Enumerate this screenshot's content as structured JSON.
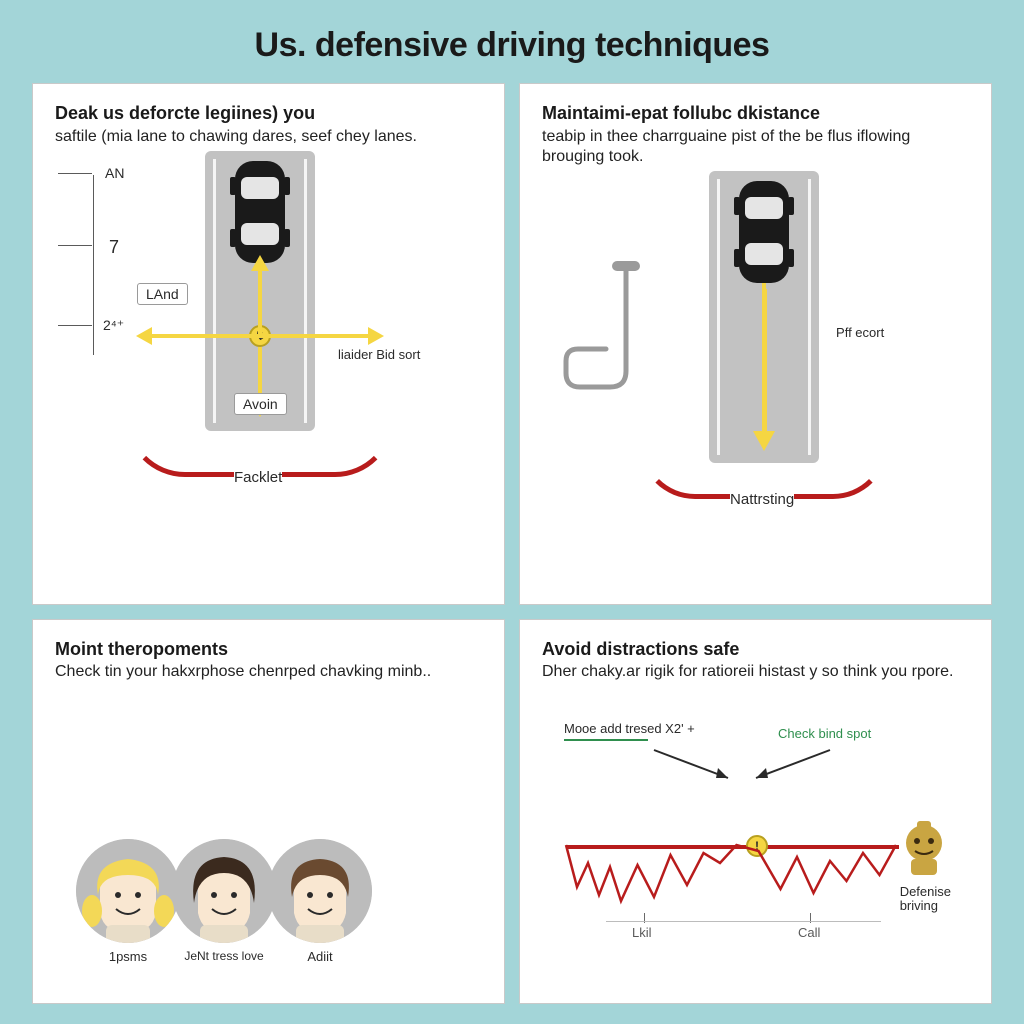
{
  "page": {
    "title": "Us. defensive driving techniques",
    "background_color": "#a3d5d8",
    "panel_bg": "#ffffff",
    "panel_border": "#c9c9c9"
  },
  "colors": {
    "text": "#1a1a1a",
    "road": "#c2c2c2",
    "lane_yellow": "#f5d642",
    "lane_white": "#f5f5f5",
    "arc_red": "#b81c1c",
    "node_yellow": "#f5d642",
    "green": "#2f8f4e",
    "gold": "#c9a542",
    "face_bg": "#bcbcbc"
  },
  "panels": {
    "p1": {
      "heading": "Deak us deforcte legiines) you",
      "sub": "saftile (mia lane to chawing dares, seef chey lanes.",
      "ticks": {
        "top": "AN",
        "mid": "7",
        "bot": "2⁴⁺",
        "and_label": "LAnd"
      },
      "labels": {
        "right_side": "liaider Bid sort",
        "box": "Avoin",
        "bottom": "Facklet"
      },
      "arc_color": "#b81c1c"
    },
    "p2": {
      "heading": "Maintaimi-epat follubc dkistance",
      "sub": "teabip in thee charrguaine pist of the be flus iflowing brouging took.",
      "labels": {
        "right_side": "Pff ecort",
        "bottom": "Nattrsting"
      },
      "arc_color": "#b81c1c"
    },
    "p3": {
      "heading": "Moint theropoments",
      "sub": "Check tin your hakxrphose chenrped chavking minb..",
      "faces": [
        {
          "name": "1psms",
          "hair_color": "#f3d857",
          "skin": "#f9e7d1"
        },
        {
          "name": "JeNt tress love",
          "hair_color": "#3b2a1e",
          "skin": "#f9e7d1"
        },
        {
          "name": "Adiit",
          "hair_color": "#6a4a30",
          "skin": "#f9e7d1"
        }
      ]
    },
    "p4": {
      "heading": "Avoid distractions safe",
      "sub": "Dher chaky.ar rigik for ratioreii histast y so think you rpore.",
      "chart": {
        "type": "line",
        "axis_color": "#b81c1c",
        "line_color": "#b81c1c",
        "node_color": "#f5d642",
        "legend_left": "Mooe add tresed X2' +",
        "legend_left_color": "#2f8f4e",
        "legend_right": "Check bind spot",
        "legend_right_color": "#2f8f4e",
        "x_ticks": [
          "Lkil",
          "Call"
        ],
        "right_stack": [
          "Defenise",
          "briving"
        ],
        "icon_color": "#c9a542",
        "series_points": [
          [
            0,
            0
          ],
          [
            4,
            -42
          ],
          [
            8,
            -18
          ],
          [
            12,
            -50
          ],
          [
            16,
            -22
          ],
          [
            20,
            -56
          ],
          [
            26,
            -20
          ],
          [
            32,
            -52
          ],
          [
            38,
            -10
          ],
          [
            44,
            -40
          ],
          [
            50,
            -8
          ],
          [
            56,
            -18
          ],
          [
            62,
            0
          ],
          [
            70,
            -6
          ],
          [
            78,
            -44
          ],
          [
            84,
            -12
          ],
          [
            90,
            -48
          ],
          [
            96,
            -16
          ],
          [
            102,
            -36
          ],
          [
            108,
            -8
          ],
          [
            114,
            -30
          ],
          [
            120,
            0
          ]
        ]
      }
    }
  }
}
